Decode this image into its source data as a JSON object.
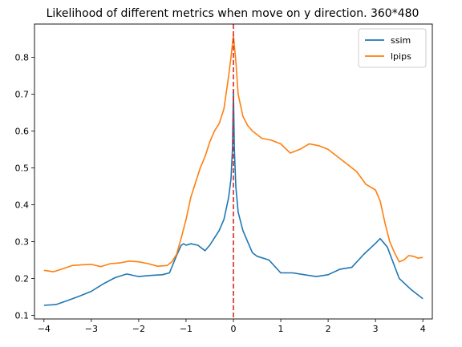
{
  "chart_data": {
    "type": "line",
    "title": "Likelihood of different metrics when move on y direction. 360*480",
    "xlabel": "",
    "ylabel": "",
    "xlim": [
      -4.2,
      4.2
    ],
    "ylim": [
      0.09,
      0.89
    ],
    "xticks": [
      -4,
      -3,
      -2,
      -1,
      0,
      1,
      2,
      3,
      4
    ],
    "yticks": [
      0.1,
      0.2,
      0.3,
      0.4,
      0.5,
      0.6,
      0.7,
      0.8
    ],
    "grid": false,
    "legend_position": "top-right",
    "vline": {
      "x": 0,
      "color": "#d62728",
      "style": "dashed"
    },
    "series": [
      {
        "name": "ssim",
        "color": "#1f77b4",
        "x": [
          -4.0,
          -3.75,
          -3.5,
          -3.25,
          -3.0,
          -2.75,
          -2.5,
          -2.25,
          -2.0,
          -1.75,
          -1.5,
          -1.35,
          -1.2,
          -1.1,
          -1.05,
          -1.0,
          -0.9,
          -0.75,
          -0.6,
          -0.5,
          -0.4,
          -0.3,
          -0.2,
          -0.1,
          -0.05,
          -0.02,
          0.0,
          0.02,
          0.05,
          0.1,
          0.2,
          0.3,
          0.4,
          0.5,
          0.75,
          1.0,
          1.25,
          1.5,
          1.75,
          2.0,
          2.25,
          2.5,
          2.75,
          3.0,
          3.1,
          3.25,
          3.5,
          3.75,
          4.0
        ],
        "y": [
          0.127,
          0.129,
          0.14,
          0.152,
          0.165,
          0.185,
          0.202,
          0.212,
          0.205,
          0.208,
          0.21,
          0.215,
          0.262,
          0.29,
          0.294,
          0.29,
          0.294,
          0.29,
          0.275,
          0.29,
          0.31,
          0.33,
          0.36,
          0.42,
          0.47,
          0.55,
          0.71,
          0.55,
          0.45,
          0.38,
          0.33,
          0.3,
          0.27,
          0.26,
          0.25,
          0.215,
          0.215,
          0.21,
          0.205,
          0.21,
          0.225,
          0.23,
          0.265,
          0.295,
          0.308,
          0.285,
          0.2,
          0.17,
          0.145
        ]
      },
      {
        "name": "lpips",
        "color": "#ff7f0e",
        "x": [
          -4.0,
          -3.8,
          -3.6,
          -3.4,
          -3.2,
          -3.0,
          -2.8,
          -2.6,
          -2.4,
          -2.2,
          -2.0,
          -1.8,
          -1.6,
          -1.4,
          -1.3,
          -1.2,
          -1.1,
          -1.0,
          -0.9,
          -0.8,
          -0.7,
          -0.6,
          -0.5,
          -0.4,
          -0.3,
          -0.2,
          -0.1,
          -0.05,
          0.0,
          0.05,
          0.1,
          0.2,
          0.3,
          0.4,
          0.5,
          0.6,
          0.8,
          1.0,
          1.2,
          1.4,
          1.6,
          1.8,
          2.0,
          2.2,
          2.4,
          2.6,
          2.8,
          3.0,
          3.1,
          3.2,
          3.3,
          3.4,
          3.5,
          3.6,
          3.7,
          3.8,
          3.9,
          4.0
        ],
        "y": [
          0.222,
          0.218,
          0.226,
          0.235,
          0.237,
          0.238,
          0.232,
          0.24,
          0.242,
          0.247,
          0.245,
          0.24,
          0.233,
          0.235,
          0.245,
          0.265,
          0.31,
          0.36,
          0.42,
          0.46,
          0.5,
          0.53,
          0.57,
          0.6,
          0.62,
          0.66,
          0.75,
          0.8,
          0.86,
          0.79,
          0.7,
          0.64,
          0.615,
          0.6,
          0.59,
          0.58,
          0.575,
          0.565,
          0.54,
          0.55,
          0.565,
          0.56,
          0.55,
          0.53,
          0.51,
          0.49,
          0.455,
          0.44,
          0.41,
          0.35,
          0.3,
          0.27,
          0.245,
          0.25,
          0.262,
          0.26,
          0.255,
          0.257
        ]
      }
    ]
  }
}
